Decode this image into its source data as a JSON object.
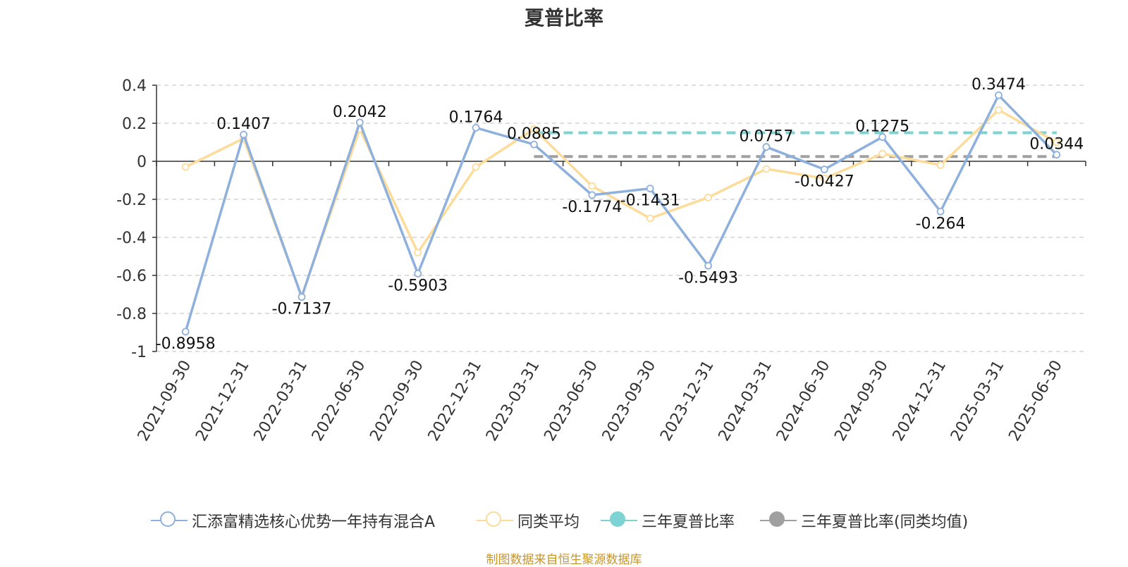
{
  "chart_data": {
    "type": "line",
    "title": "夏普比率",
    "categories": [
      "2021-09-30",
      "2021-12-31",
      "2022-03-31",
      "2022-06-30",
      "2022-09-30",
      "2022-12-31",
      "2023-03-31",
      "2023-06-30",
      "2023-09-30",
      "2023-12-31",
      "2024-03-31",
      "2024-06-30",
      "2024-09-30",
      "2024-12-31",
      "2025-03-31",
      "2025-06-30"
    ],
    "ylim": [
      -1,
      0.4
    ],
    "yticks": [
      0.4,
      0.2,
      0,
      -0.2,
      -0.4,
      -0.6,
      -0.8,
      -1
    ],
    "ytick_labels": [
      "0.4",
      "0.2",
      "0",
      "-0.2",
      "-0.4",
      "-0.6",
      "-0.8",
      "-1"
    ],
    "grid": true,
    "legend_position": "bottom",
    "series": [
      {
        "name": "汇添富精选核心优势一年持有混合A",
        "color": "#8eb0dd",
        "values": [
          -0.8958,
          0.1407,
          -0.7137,
          0.2042,
          -0.5903,
          0.1764,
          0.0885,
          -0.1774,
          -0.1431,
          -0.5493,
          0.0757,
          -0.0427,
          0.1275,
          -0.264,
          0.3474,
          0.0344
        ],
        "labels": [
          "-0.8958",
          "0.1407",
          "-0.7137",
          "0.2042",
          "-0.5903",
          "0.1764",
          "0.0885",
          "-0.1774",
          "-0.1431",
          "-0.5493",
          "0.0757",
          "-0.0427",
          "0.1275",
          "-0.264",
          "0.3474",
          "0.0344"
        ]
      },
      {
        "name": "同类平均",
        "color": "#fddc9a",
        "values": [
          -0.03,
          0.12,
          -0.71,
          0.17,
          -0.48,
          -0.03,
          0.17,
          -0.13,
          -0.3,
          -0.19,
          -0.04,
          -0.09,
          0.04,
          -0.02,
          0.27,
          0.1
        ]
      }
    ],
    "reference_lines": [
      {
        "name": "三年夏普比率",
        "color": "#7dd3d3",
        "value": 0.15,
        "from": "2023-03-31",
        "to": "2025-06-30"
      },
      {
        "name": "三年夏普比率(同类均值)",
        "color": "#a0a0a0",
        "value": 0.025,
        "from": "2023-03-31",
        "to": "2025-06-30"
      }
    ]
  },
  "legend": {
    "items": [
      {
        "label": "汇添富精选核心优势一年持有混合A",
        "style": "hollow",
        "color": "#8eb0dd"
      },
      {
        "label": "同类平均",
        "style": "hollow",
        "color": "#fddc9a"
      },
      {
        "label": "三年夏普比率",
        "style": "filled",
        "color": "#7dd3d3"
      },
      {
        "label": "三年夏普比率(同类均值)",
        "style": "filled",
        "color": "#a0a0a0"
      }
    ]
  },
  "source": "制图数据来自恒生聚源数据库"
}
